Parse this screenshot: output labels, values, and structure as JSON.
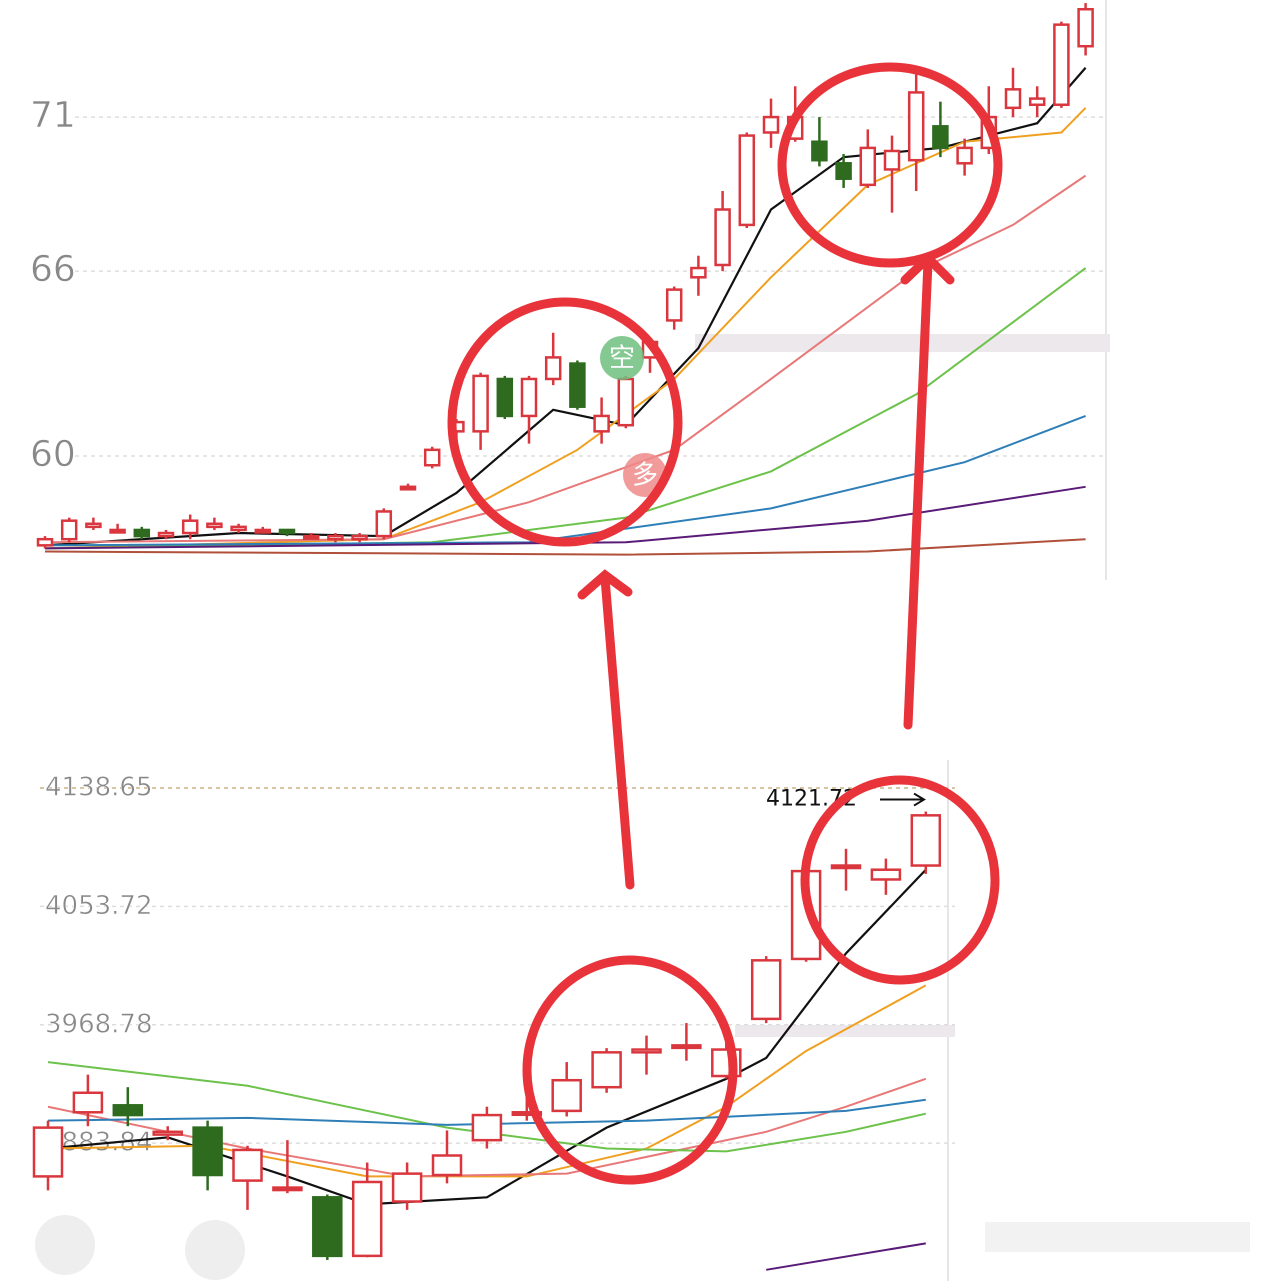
{
  "chart_data": [
    {
      "type": "candlestick",
      "ylim": [
        56.3,
        74.8
      ],
      "yticks": [
        71,
        66,
        60
      ],
      "grid": true,
      "up_color": "#d9363e",
      "down_color": "#2e6b1f",
      "open": [
        57.1,
        57.3,
        57.7,
        57.6,
        57.6,
        57.4,
        57.5,
        57.7,
        57.6,
        57.6,
        57.6,
        57.4,
        57.3,
        57.3,
        57.4,
        59.0,
        59.7,
        60.8,
        60.8,
        62.5,
        61.3,
        62.5,
        63.0,
        60.8,
        61.0,
        63.2,
        64.4,
        65.8,
        66.2,
        67.5,
        70.5,
        70.3,
        70.2,
        69.5,
        68.8,
        69.3,
        69.6,
        70.7,
        69.5,
        70.0,
        71.3,
        71.4,
        71.4,
        73.3
      ],
      "close": [
        57.3,
        57.9,
        57.8,
        57.6,
        57.4,
        57.5,
        57.9,
        57.8,
        57.7,
        57.6,
        57.5,
        57.4,
        57.4,
        57.4,
        58.2,
        59.0,
        60.2,
        61.1,
        62.6,
        61.3,
        62.5,
        63.2,
        61.6,
        61.3,
        62.5,
        63.7,
        65.4,
        66.1,
        68.0,
        70.4,
        71.0,
        71.0,
        69.6,
        69.0,
        70.0,
        69.9,
        71.8,
        70.0,
        70.0,
        71.0,
        71.9,
        71.6,
        74.0,
        74.5
      ],
      "high": [
        57.4,
        58.0,
        58.0,
        57.8,
        57.7,
        57.6,
        58.1,
        58.0,
        57.8,
        57.7,
        57.6,
        57.5,
        57.5,
        57.5,
        58.3,
        59.1,
        60.3,
        61.2,
        62.7,
        62.6,
        62.6,
        64.0,
        63.1,
        61.9,
        62.6,
        63.8,
        65.5,
        66.5,
        68.6,
        70.5,
        71.6,
        72.0,
        71.0,
        69.8,
        70.6,
        70.4,
        72.4,
        71.5,
        70.3,
        72.0,
        72.6,
        72.0,
        74.1,
        74.7
      ],
      "low": [
        57.0,
        57.2,
        57.6,
        57.5,
        57.3,
        57.3,
        57.3,
        57.6,
        57.5,
        57.5,
        57.4,
        57.3,
        57.2,
        57.2,
        57.3,
        58.9,
        59.6,
        59.9,
        60.2,
        61.2,
        60.4,
        62.3,
        61.5,
        60.4,
        60.9,
        62.7,
        64.1,
        65.2,
        66.0,
        67.4,
        70.0,
        70.2,
        69.4,
        68.7,
        68.7,
        67.9,
        68.6,
        69.7,
        69.1,
        69.8,
        71.0,
        71.0,
        71.3,
        73.0
      ],
      "series": [
        {
          "color": "#111111",
          "x": [
            0,
            8,
            14,
            17,
            21,
            24,
            27,
            30,
            33,
            37,
            41,
            43
          ],
          "values": [
            57.1,
            57.5,
            57.4,
            58.8,
            61.5,
            61.0,
            63.5,
            68.0,
            69.7,
            70.0,
            70.8,
            72.6
          ]
        },
        {
          "color": "#f0a020",
          "x": [
            0,
            14,
            18,
            22,
            26,
            30,
            34,
            38,
            42,
            43
          ],
          "values": [
            57.0,
            57.3,
            58.5,
            60.2,
            62.5,
            65.8,
            68.8,
            70.2,
            70.5,
            71.3
          ]
        },
        {
          "color": "#e87878",
          "x": [
            0,
            14,
            20,
            26,
            30,
            36,
            40,
            43
          ],
          "values": [
            57.2,
            57.3,
            58.5,
            60.2,
            62.5,
            66.0,
            67.5,
            69.1
          ]
        },
        {
          "color": "#6cc24a",
          "x": [
            0,
            16,
            24,
            30,
            36,
            43
          ],
          "values": [
            57.0,
            57.2,
            58.0,
            59.5,
            62.0,
            66.1
          ]
        },
        {
          "color": "#2e7fb8",
          "x": [
            0,
            20,
            30,
            38,
            43
          ],
          "values": [
            57.1,
            57.2,
            58.3,
            59.8,
            61.3
          ]
        },
        {
          "color": "#5a1a78",
          "x": [
            0,
            24,
            34,
            43
          ],
          "values": [
            57.0,
            57.2,
            57.9,
            59.0
          ]
        },
        {
          "color": "#b0503a",
          "x": [
            0,
            24,
            34,
            43
          ],
          "values": [
            56.9,
            56.8,
            56.9,
            57.3
          ]
        }
      ],
      "badges": [
        "空",
        "多"
      ]
    },
    {
      "type": "candlestick",
      "ylim": [
        3790,
        4158.7
      ],
      "yticks": [
        4138.65,
        4053.72,
        3968.78,
        3883.84
      ],
      "grid": true,
      "up_color": "#d9363e",
      "down_color": "#2e6b1f",
      "open": [
        3860,
        3906,
        3911,
        3890,
        3895,
        3857,
        3851,
        3845,
        3803,
        3842,
        3861,
        3886,
        3905,
        3907,
        3924,
        3949,
        3953,
        3932,
        3973,
        4016,
        4082,
        4073,
        4083
      ],
      "close": [
        3895,
        3920,
        3904,
        3892,
        3861,
        3879,
        3852,
        3803,
        3856,
        3862,
        3875,
        3904,
        3906,
        3929,
        3949,
        3951,
        3954,
        3951,
        4015,
        4079,
        4083,
        4080,
        4119
      ],
      "high": [
        3900,
        3933,
        3924,
        3896,
        3900,
        3882,
        3886,
        3847,
        3870,
        3870,
        3893,
        3910,
        3933,
        3942,
        3952,
        3961,
        3970,
        3968,
        4018,
        4085,
        4095,
        4088,
        4121.72
      ],
      "low": [
        3850,
        3896,
        3896,
        3886,
        3850,
        3836,
        3848,
        3800,
        3802,
        3836,
        3855,
        3880,
        3900,
        3903,
        3920,
        3933,
        3943,
        3930,
        3970,
        4014,
        4065,
        4062,
        4077
      ],
      "series": [
        {
          "color": "#111111",
          "x": [
            0,
            3,
            6,
            8,
            11,
            14,
            17,
            18,
            20,
            22
          ],
          "values": [
            3880,
            3888,
            3860,
            3840,
            3845,
            3895,
            3930,
            3945,
            4020,
            4080
          ]
        },
        {
          "color": "#f0a020",
          "x": [
            0,
            4,
            8,
            12,
            15,
            17,
            19,
            22
          ],
          "values": [
            3880,
            3882,
            3860,
            3860,
            3880,
            3910,
            3950,
            3997
          ]
        },
        {
          "color": "#e87878",
          "x": [
            0,
            5,
            9,
            13,
            16,
            18,
            20,
            22
          ],
          "values": [
            3910,
            3880,
            3860,
            3862,
            3880,
            3892,
            3910,
            3930
          ]
        },
        {
          "color": "#6cc24a",
          "x": [
            0,
            5,
            10,
            14,
            17,
            20,
            22
          ],
          "values": [
            3942,
            3925,
            3895,
            3880,
            3878,
            3892,
            3905
          ]
        },
        {
          "color": "#2e7fb8",
          "x": [
            0,
            5,
            10,
            15,
            20,
            22
          ],
          "values": [
            3900,
            3902,
            3897,
            3900,
            3907,
            3915
          ]
        },
        {
          "color": "#5a1a78",
          "x": [
            18,
            22
          ],
          "values": [
            3793,
            3812
          ]
        }
      ],
      "annotations": [
        {
          "label": "4121.72",
          "value": 4121.72
        }
      ]
    }
  ]
}
